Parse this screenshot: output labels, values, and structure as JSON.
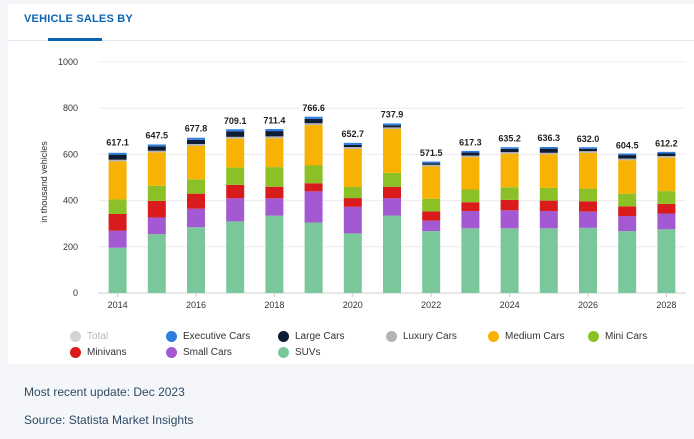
{
  "tab": {
    "label": "VEHICLE SALES BY"
  },
  "chart_data": {
    "type": "bar",
    "stacked": true,
    "title": "",
    "xlabel": "",
    "ylabel": "in thousand vehicles",
    "ylim": [
      0,
      1000
    ],
    "yticks": [
      0,
      200,
      400,
      600,
      800,
      1000
    ],
    "xticks": [
      "2014",
      "2016",
      "2018",
      "2020",
      "2022",
      "2024",
      "2026",
      "2028"
    ],
    "categories": [
      "2014",
      "2015",
      "2016",
      "2017",
      "2018",
      "2019",
      "2020",
      "2021",
      "2022",
      "2023",
      "2024",
      "2025",
      "2026",
      "2027",
      "2028"
    ],
    "totals": [
      617.1,
      647.5,
      677.8,
      709.1,
      711.4,
      766.6,
      652.7,
      737.9,
      571.5,
      617.3,
      635.2,
      636.3,
      632.0,
      604.5,
      612.2
    ],
    "total_labels": [
      "617.1",
      "647.5",
      "677.8",
      "709.1",
      "711.4",
      "766.6",
      "652.7",
      "737.9",
      "571.5",
      "617.3",
      "635.2",
      "636.3",
      "632.0",
      "604.5",
      "612.2"
    ],
    "series": [
      {
        "name": "SUVs",
        "color": "#7ac79c",
        "values": [
          196,
          255,
          285,
          310,
          335,
          305,
          258,
          335,
          268,
          280,
          280,
          280,
          282,
          268,
          276
        ]
      },
      {
        "name": "Small Cars",
        "color": "#a259d1",
        "values": [
          74,
          72,
          80,
          100,
          75,
          135,
          115,
          75,
          45,
          75,
          78,
          75,
          70,
          65,
          68
        ]
      },
      {
        "name": "Minivans",
        "color": "#d91b1b",
        "values": [
          72,
          72,
          65,
          58,
          50,
          35,
          38,
          50,
          40,
          38,
          45,
          45,
          45,
          42,
          42
        ]
      },
      {
        "name": "Mini Cars",
        "color": "#8bc127",
        "values": [
          63,
          65,
          62,
          75,
          85,
          77,
          48,
          60,
          55,
          55,
          55,
          55,
          55,
          55,
          55
        ]
      },
      {
        "name": "Medium Cars",
        "color": "#f8b203",
        "values": [
          165,
          145,
          145,
          125,
          125,
          175,
          165,
          190,
          140,
          140,
          145,
          145,
          155,
          145,
          145
        ]
      },
      {
        "name": "Luxury Cars",
        "color": "#b3b3b3",
        "values": [
          7,
          7,
          8,
          8,
          8,
          8,
          8,
          7,
          7,
          7,
          7,
          7,
          7,
          7,
          7
        ]
      },
      {
        "name": "Large Cars",
        "color": "#0e1d33",
        "values": [
          22,
          19,
          18,
          24,
          23,
          19,
          9,
          9,
          7,
          13,
          14,
          18,
          10,
          15,
          11
        ]
      },
      {
        "name": "Executive Cars",
        "color": "#2e7ee0",
        "values": [
          8,
          8,
          9,
          9,
          9,
          9,
          9,
          8,
          7,
          7,
          7,
          7,
          7,
          7,
          7
        ]
      }
    ],
    "legend": [
      {
        "name": "Total",
        "color": "#d3d3d3",
        "hidden": true
      },
      {
        "name": "Executive Cars",
        "color": "#2e7ee0"
      },
      {
        "name": "Large Cars",
        "color": "#0e1d33"
      },
      {
        "name": "Luxury Cars",
        "color": "#b3b3b3"
      },
      {
        "name": "Medium Cars",
        "color": "#f8b203"
      },
      {
        "name": "Mini Cars",
        "color": "#8bc127"
      },
      {
        "name": "Minivans",
        "color": "#d91b1b"
      },
      {
        "name": "Small Cars",
        "color": "#a259d1"
      },
      {
        "name": "SUVs",
        "color": "#7ac79c"
      }
    ],
    "legend_position": "bottom"
  },
  "footer": {
    "update": "Most recent update: Dec 2023",
    "source": "Source: Statista Market Insights"
  }
}
